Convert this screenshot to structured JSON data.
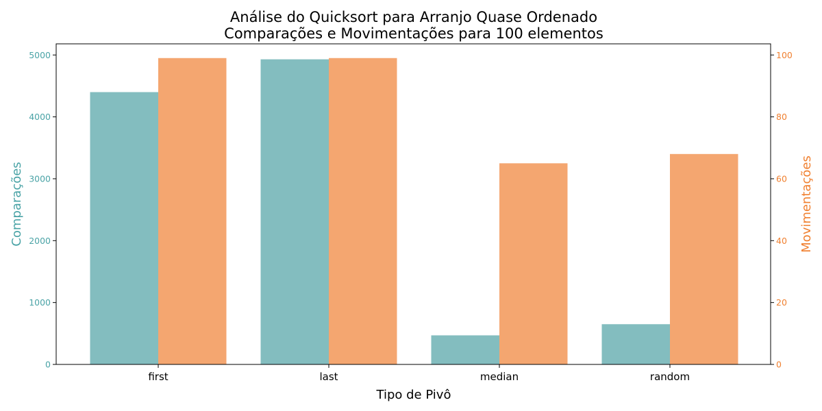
{
  "chart_data": {
    "type": "bar",
    "title": [
      "Análise do Quicksort para Arranjo Quase Ordenado",
      "Comparações e Movimentações para 100 elementos"
    ],
    "xlabel": "Tipo de Pivô",
    "categories": [
      "first",
      "last",
      "median",
      "random"
    ],
    "series": [
      {
        "name": "Comparações",
        "axis": "left",
        "values": [
          4400,
          4930,
          470,
          650
        ],
        "color": "#83bdbf"
      },
      {
        "name": "Movimentações",
        "axis": "right",
        "values": [
          99,
          99,
          65,
          68
        ],
        "color": "#f4a670"
      }
    ],
    "left_axis": {
      "label": "Comparações",
      "ylim": [
        0,
        5180
      ],
      "ticks": [
        0,
        1000,
        2000,
        3000,
        4000,
        5000
      ],
      "color": "#4aa3a6"
    },
    "right_axis": {
      "label": "Movimentações",
      "ylim": [
        0,
        103.6
      ],
      "ticks": [
        0,
        20,
        40,
        60,
        80,
        100
      ],
      "color": "#f08030"
    },
    "grid": false,
    "legend": "none"
  }
}
